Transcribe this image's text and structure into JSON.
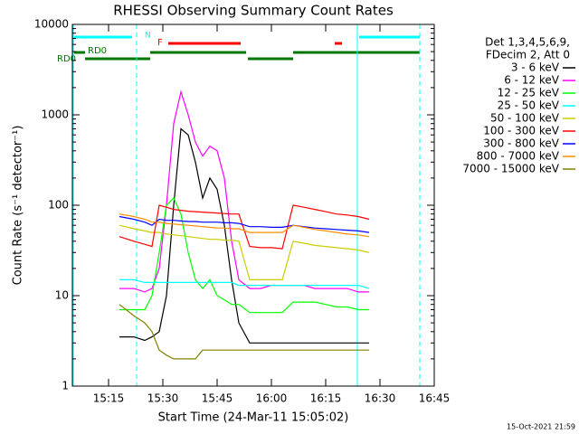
{
  "chart_data": {
    "type": "line",
    "title": "RHESSI Observing Summary Count Rates",
    "xlabel": "Start Time (24-Mar-11 15:05:02)",
    "ylabel": "Count Rate (s⁻¹ detector⁻¹)",
    "legend_header": [
      "Det 1,3,4,5,6,9,",
      "FDecim 2, Att 0"
    ],
    "flag_labels": [
      "N",
      "F",
      "RD0",
      "RD0"
    ],
    "timestamp": "15-Oct-2021 21:59",
    "log_y": true,
    "xlim": [
      "15:05",
      "16:45"
    ],
    "xticks": [
      "15:15",
      "15:30",
      "15:45",
      "16:00",
      "16:15",
      "16:30",
      "16:45"
    ],
    "ylim": [
      1,
      10000
    ],
    "yticks": [
      1,
      10,
      100,
      1000,
      10000
    ],
    "x": [
      "15:18",
      "15:22",
      "15:25",
      "15:27",
      "15:29",
      "15:31",
      "15:33",
      "15:35",
      "15:37",
      "15:39",
      "15:41",
      "15:43",
      "15:45",
      "15:47",
      "15:49",
      "15:51",
      "15:54",
      "15:57",
      "16:00",
      "16:03",
      "16:06",
      "16:09",
      "16:12",
      "16:15",
      "16:18",
      "16:21",
      "16:24",
      "16:27"
    ],
    "series": [
      {
        "name": "3 - 6 keV",
        "color": "#000000",
        "values": [
          3.5,
          3.5,
          3.2,
          3.5,
          4,
          10,
          100,
          700,
          600,
          300,
          120,
          200,
          150,
          60,
          15,
          5,
          3,
          3,
          3,
          3,
          3,
          3,
          3,
          3,
          3,
          3,
          3,
          3
        ]
      },
      {
        "name": "6 - 12 keV",
        "color": "#ff00ff",
        "values": [
          12,
          12,
          11,
          12,
          20,
          100,
          800,
          1800,
          1000,
          500,
          350,
          450,
          400,
          200,
          40,
          15,
          12,
          12,
          13,
          13,
          13,
          13,
          12,
          12,
          12,
          12,
          11,
          11
        ]
      },
      {
        "name": "12 - 25 keV",
        "color": "#00ff00",
        "values": [
          7,
          7,
          7,
          10,
          30,
          100,
          120,
          80,
          30,
          15,
          12,
          15,
          10,
          9,
          8,
          8,
          6.5,
          6.5,
          6.5,
          6.5,
          8.5,
          8.5,
          8.5,
          8,
          7.5,
          7.5,
          7,
          7
        ]
      },
      {
        "name": "25 - 50 keV",
        "color": "#00ffff",
        "values": [
          15,
          15,
          14,
          14,
          14,
          14,
          14,
          14,
          14,
          14,
          14,
          14,
          14,
          14,
          14,
          13,
          13,
          13,
          13,
          13,
          13,
          13,
          13,
          13,
          13,
          13,
          13,
          12
        ]
      },
      {
        "name": "50 - 100 keV",
        "color": "#cccc00",
        "values": [
          60,
          55,
          52,
          50,
          50,
          48,
          47,
          46,
          45,
          44,
          43,
          42,
          42,
          41,
          41,
          40,
          15,
          15,
          15,
          15,
          40,
          38,
          36,
          35,
          34,
          33,
          32,
          30
        ]
      },
      {
        "name": "100 - 300 keV",
        "color": "#ff0000",
        "values": [
          45,
          40,
          37,
          35,
          100,
          95,
          90,
          88,
          86,
          85,
          84,
          83,
          82,
          81,
          80,
          80,
          35,
          34,
          34,
          33,
          100,
          95,
          90,
          85,
          80,
          78,
          75,
          70
        ]
      },
      {
        "name": "300 - 800 keV",
        "color": "#0000ff",
        "values": [
          75,
          70,
          65,
          60,
          70,
          68,
          68,
          67,
          66,
          66,
          65,
          65,
          65,
          64,
          64,
          63,
          58,
          58,
          57,
          57,
          60,
          58,
          56,
          55,
          54,
          53,
          52,
          50
        ]
      },
      {
        "name": "800 - 7000 keV",
        "color": "#ff8c00",
        "values": [
          80,
          75,
          70,
          65,
          65,
          63,
          62,
          61,
          60,
          59,
          58,
          57,
          56,
          56,
          55,
          55,
          50,
          50,
          50,
          50,
          60,
          57,
          54,
          52,
          50,
          48,
          47,
          45
        ]
      },
      {
        "name": "7000 - 15000 keV",
        "color": "#808000",
        "values": [
          8,
          6,
          5,
          4,
          2.5,
          2.2,
          2,
          2,
          2,
          2,
          2.5,
          2.5,
          2.5,
          2.5,
          2.5,
          2.5,
          2.5,
          2.5,
          2.5,
          2.5,
          2.5,
          2.5,
          2.5,
          2.5,
          2.5,
          2.5,
          2.5,
          2.5
        ]
      }
    ]
  }
}
